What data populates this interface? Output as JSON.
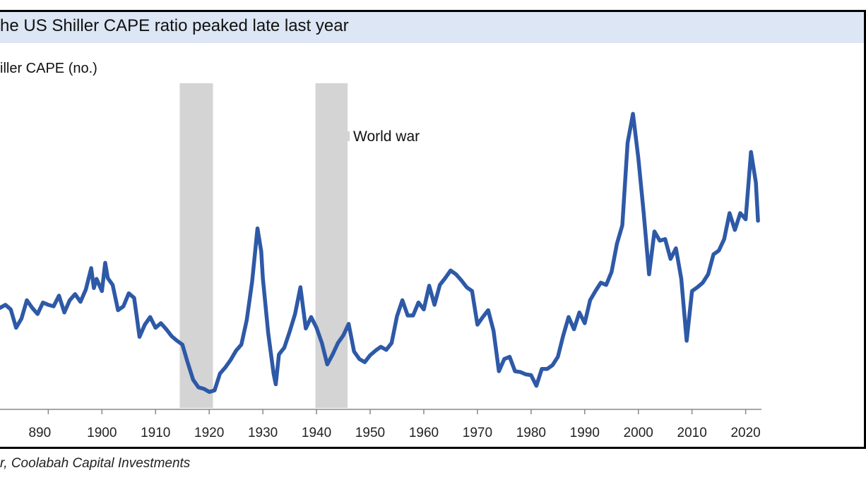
{
  "chart_data": {
    "type": "line",
    "title": "he US Shiller CAPE ratio peaked late last year",
    "ylabel": "iller CAPE (no.)",
    "source": "r, Coolabah Capital Investments",
    "xlim": [
      1881,
      2024
    ],
    "ylim": [
      4.5,
      47
    ],
    "x_ticks": [
      "890",
      "1900",
      "1910",
      "1920",
      "1930",
      "1940",
      "1950",
      "1960",
      "1970",
      "1980",
      "1990",
      "2000",
      "2010",
      "2020"
    ],
    "legend": [
      {
        "label": "World war",
        "color": "#d4d4d4"
      }
    ],
    "shaded_periods": [
      {
        "name": "World war",
        "start": 1914.5,
        "end": 1920.7
      },
      {
        "name": "World war",
        "start": 1939.8,
        "end": 1945.8
      }
    ],
    "series": [
      {
        "color": "#2e59a7",
        "x": [
          1881,
          1882,
          1883,
          1884,
          1885,
          1886,
          1887,
          1888,
          1889,
          1890,
          1891,
          1892,
          1893,
          1894,
          1895,
          1896,
          1897,
          1898,
          1898.5,
          1899,
          1900,
          1900.6,
          1901.1,
          1902,
          1903,
          1904,
          1905,
          1906,
          1906.5,
          1907,
          1908,
          1909,
          1910,
          1911,
          1912,
          1913,
          1914,
          1915,
          1916,
          1917,
          1918,
          1919,
          1920,
          1921,
          1922,
          1923,
          1924,
          1925,
          1926,
          1927,
          1928,
          1929,
          1929.7,
          1930,
          1931,
          1932,
          1932.4,
          1933,
          1934,
          1935,
          1936,
          1937,
          1938,
          1939,
          1940,
          1941,
          1942,
          1943,
          1944,
          1945,
          1946,
          1947,
          1948,
          1949,
          1950,
          1951,
          1952,
          1953,
          1954,
          1955,
          1956,
          1957,
          1958,
          1959,
          1960,
          1961,
          1962,
          1963,
          1964,
          1965,
          1966,
          1967,
          1968,
          1969,
          1970,
          1971,
          1972,
          1973,
          1974,
          1975,
          1976,
          1977,
          1978,
          1979,
          1980,
          1981,
          1982,
          1983,
          1984,
          1985,
          1986,
          1987,
          1988,
          1989,
          1990,
          1991,
          1992,
          1993,
          1994,
          1995,
          1996,
          1997,
          1998,
          1999,
          2000,
          2001,
          2002,
          2003,
          2004,
          2005,
          2006,
          2007,
          2008,
          2009,
          2010,
          2011,
          2012,
          2013,
          2014,
          2015,
          2016,
          2017,
          2018,
          2019,
          2020,
          2021,
          2021.9,
          2022.3
        ],
        "y": [
          17.6,
          18.0,
          17.4,
          15.0,
          16.2,
          18.6,
          17.6,
          16.8,
          18.3,
          18.0,
          17.8,
          19.2,
          17.0,
          18.6,
          19.4,
          18.4,
          20.0,
          22.8,
          20.2,
          21.4,
          19.8,
          23.5,
          21.5,
          20.6,
          17.3,
          17.8,
          19.5,
          18.9,
          16.4,
          13.8,
          15.4,
          16.4,
          15.0,
          15.6,
          14.8,
          13.9,
          13.3,
          12.8,
          10.4,
          8.2,
          7.2,
          7.0,
          6.6,
          6.8,
          9.0,
          9.8,
          10.8,
          12.0,
          12.8,
          16.0,
          21.0,
          28.0,
          25.0,
          21.5,
          14.3,
          9.0,
          7.6,
          11.5,
          12.4,
          14.5,
          16.8,
          20.3,
          14.9,
          16.4,
          15.0,
          13.0,
          10.2,
          11.5,
          13.0,
          14.0,
          15.5,
          11.9,
          10.9,
          10.5,
          11.4,
          12.0,
          12.5,
          12.1,
          13.0,
          16.5,
          18.6,
          16.6,
          16.6,
          18.3,
          17.4,
          20.5,
          18.0,
          20.6,
          21.5,
          22.5,
          22.0,
          21.2,
          20.3,
          19.8,
          15.4,
          16.4,
          17.3,
          14.6,
          9.3,
          10.9,
          11.2,
          9.3,
          9.2,
          8.9,
          8.8,
          7.4,
          9.6,
          9.6,
          10.1,
          11.2,
          14.0,
          16.4,
          14.8,
          17.0,
          15.6,
          18.6,
          19.8,
          20.9,
          20.6,
          22.3,
          26.0,
          28.4,
          39.2,
          43.0,
          37.2,
          30.0,
          22.0,
          27.6,
          26.4,
          26.6,
          24.0,
          25.4,
          21.4,
          13.3,
          19.8,
          20.3,
          20.9,
          22.0,
          24.6,
          25.1,
          26.6,
          30.0,
          27.8,
          30.0,
          29.2,
          38.0,
          34.0,
          29.0
        ]
      }
    ]
  }
}
